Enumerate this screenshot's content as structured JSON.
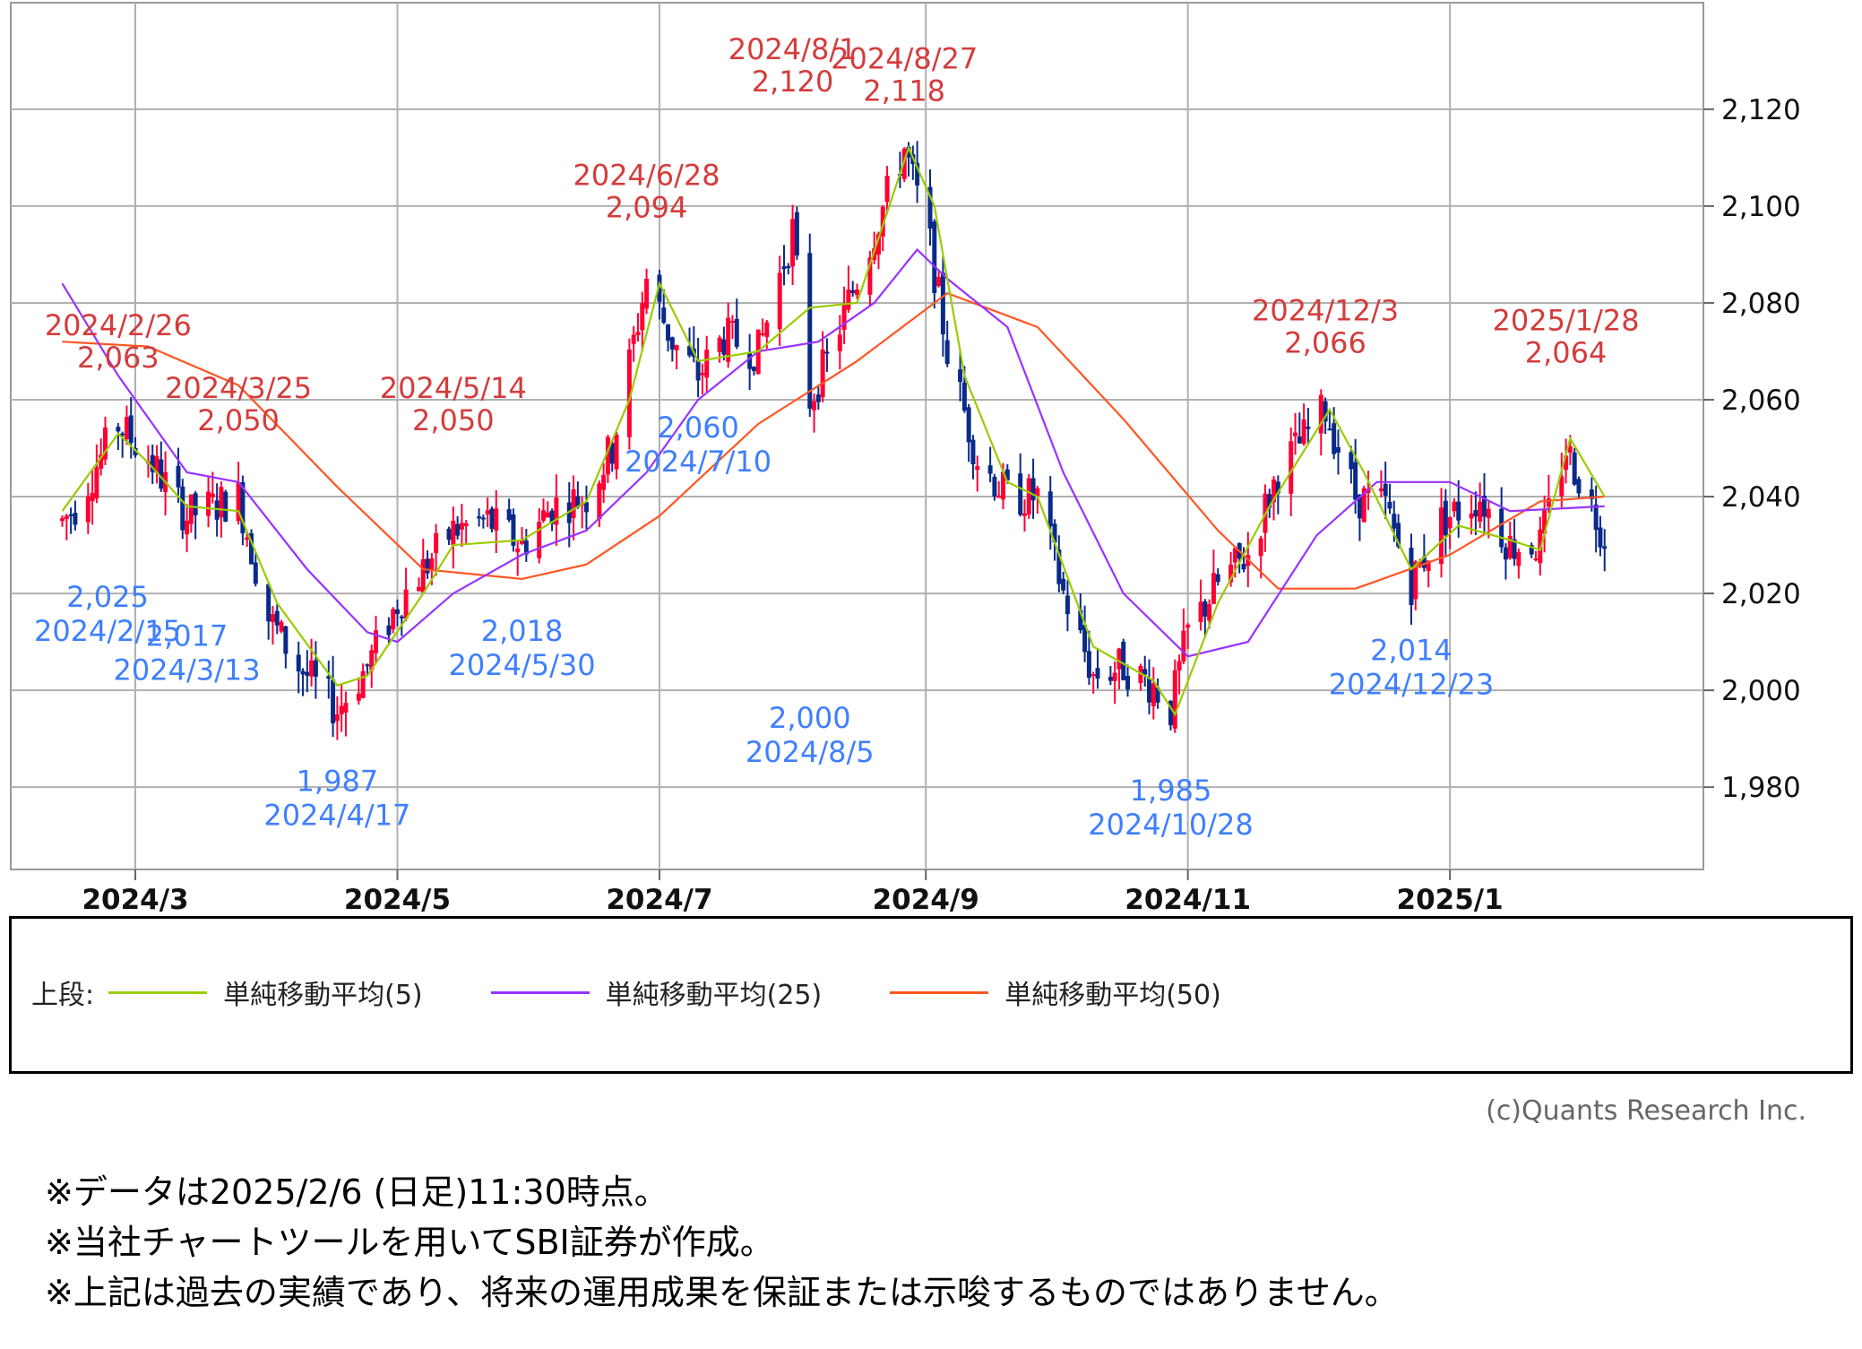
{
  "chart_data": {
    "type": "candlestick",
    "y_ticks": [
      1980,
      2000,
      2020,
      2040,
      2060,
      2080,
      2100,
      2120
    ],
    "y_tick_labels": [
      "1,980",
      "2,000",
      "2,020",
      "2,040",
      "2,060",
      "2,080",
      "2,100",
      "2,120"
    ],
    "x_ticks": [
      "2024/3",
      "2024/5",
      "2024/7",
      "2024/9",
      "2024/11",
      "2025/1"
    ],
    "ylim": [
      1963,
      2142
    ],
    "grid": true,
    "colors": {
      "up": "#ff0033",
      "down": "#0a2a8a",
      "ma5": "#99cc00",
      "ma25": "#9933ff",
      "ma50": "#ff5522",
      "high_label": "#d43c3c",
      "low_label": "#3f7fff"
    },
    "annotations_high": [
      {
        "value": "2,063",
        "date": "2024/2/26"
      },
      {
        "value": "2,050",
        "date": "2024/3/25"
      },
      {
        "value": "2,050",
        "date": "2024/5/14"
      },
      {
        "value": "2,094",
        "date": "2024/6/28"
      },
      {
        "value": "2,120",
        "date": "2024/8/1"
      },
      {
        "value": "2,118",
        "date": "2024/8/27"
      },
      {
        "value": "2,066",
        "date": "2024/12/3"
      },
      {
        "value": "2,064",
        "date": "2025/1/28"
      }
    ],
    "annotations_low": [
      {
        "value": "2,025",
        "date": "2024/2/15"
      },
      {
        "value": "2,017",
        "date": "2024/3/13"
      },
      {
        "value": "1,987",
        "date": "2024/4/17"
      },
      {
        "value": "2,018",
        "date": "2024/5/30"
      },
      {
        "value": "2,060",
        "date": "2024/7/10"
      },
      {
        "value": "2,000",
        "date": "2024/8/5"
      },
      {
        "value": "1,985",
        "date": "2024/10/28"
      },
      {
        "value": "2,014",
        "date": "2024/12/23"
      }
    ],
    "price_path": [
      [
        "2024-02-13",
        2035
      ],
      [
        "2024-02-16",
        2038
      ],
      [
        "2024-02-26",
        2055
      ],
      [
        "2024-03-04",
        2048
      ],
      [
        "2024-03-13",
        2036
      ],
      [
        "2024-03-25",
        2040
      ],
      [
        "2024-04-01",
        2015
      ],
      [
        "2024-04-08",
        2005
      ],
      [
        "2024-04-17",
        1996
      ],
      [
        "2024-04-24",
        2005
      ],
      [
        "2024-05-01",
        2018
      ],
      [
        "2024-05-07",
        2025
      ],
      [
        "2024-05-14",
        2033
      ],
      [
        "2024-05-22",
        2035
      ],
      [
        "2024-05-30",
        2030
      ],
      [
        "2024-06-06",
        2038
      ],
      [
        "2024-06-14",
        2040
      ],
      [
        "2024-06-20",
        2050
      ],
      [
        "2024-06-28",
        2085
      ],
      [
        "2024-07-04",
        2072
      ],
      [
        "2024-07-10",
        2065
      ],
      [
        "2024-07-16",
        2073
      ],
      [
        "2024-07-24",
        2070
      ],
      [
        "2024-08-01",
        2095
      ],
      [
        "2024-08-05",
        2060
      ],
      [
        "2024-08-09",
        2068
      ],
      [
        "2024-08-16",
        2085
      ],
      [
        "2024-08-27",
        2112
      ],
      [
        "2024-09-02",
        2092
      ],
      [
        "2024-09-06",
        2070
      ],
      [
        "2024-09-13",
        2048
      ],
      [
        "2024-09-20",
        2040
      ],
      [
        "2024-09-27",
        2040
      ],
      [
        "2024-10-03",
        2020
      ],
      [
        "2024-10-10",
        2003
      ],
      [
        "2024-10-17",
        2005
      ],
      [
        "2024-10-24",
        2001
      ],
      [
        "2024-10-28",
        1996
      ],
      [
        "2024-11-01",
        2012
      ],
      [
        "2024-11-08",
        2022
      ],
      [
        "2024-11-15",
        2028
      ],
      [
        "2024-11-22",
        2045
      ],
      [
        "2024-12-03",
        2058
      ],
      [
        "2024-12-10",
        2040
      ],
      [
        "2024-12-17",
        2038
      ],
      [
        "2024-12-23",
        2022
      ],
      [
        "2024-12-30",
        2035
      ],
      [
        "2025-01-08",
        2040
      ],
      [
        "2025-01-15",
        2030
      ],
      [
        "2025-01-22",
        2030
      ],
      [
        "2025-01-28",
        2050
      ],
      [
        "2025-02-03",
        2038
      ],
      [
        "2025-02-06",
        2032
      ]
    ],
    "ma5": [
      [
        "2024-02-13",
        2037
      ],
      [
        "2024-02-26",
        2053
      ],
      [
        "2024-03-04",
        2047
      ],
      [
        "2024-03-13",
        2038
      ],
      [
        "2024-03-25",
        2037
      ],
      [
        "2024-04-03",
        2018
      ],
      [
        "2024-04-17",
        2001
      ],
      [
        "2024-04-24",
        2003
      ],
      [
        "2024-05-07",
        2020
      ],
      [
        "2024-05-14",
        2030
      ],
      [
        "2024-05-30",
        2031
      ],
      [
        "2024-06-14",
        2039
      ],
      [
        "2024-06-24",
        2060
      ],
      [
        "2024-07-01",
        2084
      ],
      [
        "2024-07-10",
        2068
      ],
      [
        "2024-07-24",
        2070
      ],
      [
        "2024-08-05",
        2079
      ],
      [
        "2024-08-16",
        2080
      ],
      [
        "2024-08-28",
        2112
      ],
      [
        "2024-09-03",
        2100
      ],
      [
        "2024-09-10",
        2065
      ],
      [
        "2024-09-20",
        2043
      ],
      [
        "2024-09-27",
        2040
      ],
      [
        "2024-10-10",
        2009
      ],
      [
        "2024-10-24",
        2002
      ],
      [
        "2024-10-29",
        1995
      ],
      [
        "2024-11-08",
        2018
      ],
      [
        "2024-11-20",
        2038
      ],
      [
        "2024-12-04",
        2058
      ],
      [
        "2024-12-12",
        2045
      ],
      [
        "2024-12-23",
        2025
      ],
      [
        "2025-01-03",
        2034
      ],
      [
        "2025-01-15",
        2031
      ],
      [
        "2025-01-22",
        2029
      ],
      [
        "2025-01-29",
        2052
      ],
      [
        "2025-02-06",
        2040
      ]
    ],
    "ma25": [
      [
        "2024-02-13",
        2084
      ],
      [
        "2024-02-26",
        2065
      ],
      [
        "2024-03-13",
        2045
      ],
      [
        "2024-03-25",
        2043
      ],
      [
        "2024-04-10",
        2025
      ],
      [
        "2024-04-24",
        2012
      ],
      [
        "2024-05-01",
        2010
      ],
      [
        "2024-05-14",
        2020
      ],
      [
        "2024-05-30",
        2028
      ],
      [
        "2024-06-14",
        2033
      ],
      [
        "2024-06-28",
        2045
      ],
      [
        "2024-07-10",
        2060
      ],
      [
        "2024-07-24",
        2070
      ],
      [
        "2024-08-07",
        2072
      ],
      [
        "2024-08-20",
        2080
      ],
      [
        "2024-08-30",
        2091
      ],
      [
        "2024-09-06",
        2085
      ],
      [
        "2024-09-20",
        2075
      ],
      [
        "2024-10-03",
        2045
      ],
      [
        "2024-10-17",
        2020
      ],
      [
        "2024-11-01",
        2007
      ],
      [
        "2024-11-15",
        2010
      ],
      [
        "2024-12-01",
        2032
      ],
      [
        "2024-12-15",
        2043
      ],
      [
        "2025-01-01",
        2043
      ],
      [
        "2025-01-15",
        2037
      ],
      [
        "2025-02-06",
        2038
      ]
    ],
    "ma50": [
      [
        "2024-02-13",
        2072
      ],
      [
        "2024-03-04",
        2071
      ],
      [
        "2024-03-25",
        2063
      ],
      [
        "2024-04-17",
        2042
      ],
      [
        "2024-05-07",
        2025
      ],
      [
        "2024-05-30",
        2023
      ],
      [
        "2024-06-14",
        2026
      ],
      [
        "2024-07-01",
        2036
      ],
      [
        "2024-07-24",
        2055
      ],
      [
        "2024-08-16",
        2068
      ],
      [
        "2024-09-06",
        2082
      ],
      [
        "2024-09-27",
        2075
      ],
      [
        "2024-10-17",
        2056
      ],
      [
        "2024-11-08",
        2033
      ],
      [
        "2024-11-22",
        2021
      ],
      [
        "2024-12-10",
        2021
      ],
      [
        "2025-01-01",
        2028
      ],
      [
        "2025-01-22",
        2039
      ],
      [
        "2025-02-06",
        2040
      ]
    ]
  },
  "legend": {
    "prefix": "上段:",
    "items": [
      {
        "label": "単純移動平均(5)",
        "color": "#99cc00"
      },
      {
        "label": "単純移動平均(25)",
        "color": "#9933ff"
      },
      {
        "label": "単純移動平均(50)",
        "color": "#ff5522"
      }
    ]
  },
  "copyright": "(c)Quants Research Inc.",
  "notes": [
    "※データは2025/2/6 (日足)11:30時点。",
    "※当社チャートツールを用いてSBI証券が作成。",
    "※上記は過去の実績であり、将来の運用成果を保証または示唆するものではありません。"
  ]
}
